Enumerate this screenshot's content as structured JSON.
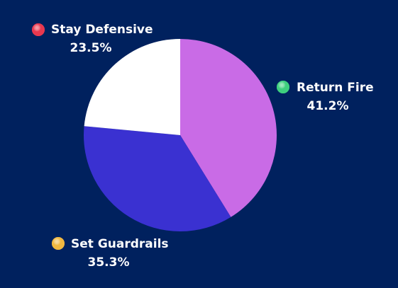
{
  "chart_data": {
    "type": "pie",
    "categories": [
      "Return Fire",
      "Set Guardrails",
      "Stay Defensive"
    ],
    "values": [
      41.2,
      35.3,
      23.5
    ],
    "value_labels": [
      "41.2%",
      "35.3%",
      "23.5%"
    ],
    "colors": [
      "#c96be6",
      "#3a31d1",
      "#ffffff"
    ],
    "marker_colors": [
      "#3ecf7e",
      "#f0b840",
      "#e8384f"
    ]
  }
}
